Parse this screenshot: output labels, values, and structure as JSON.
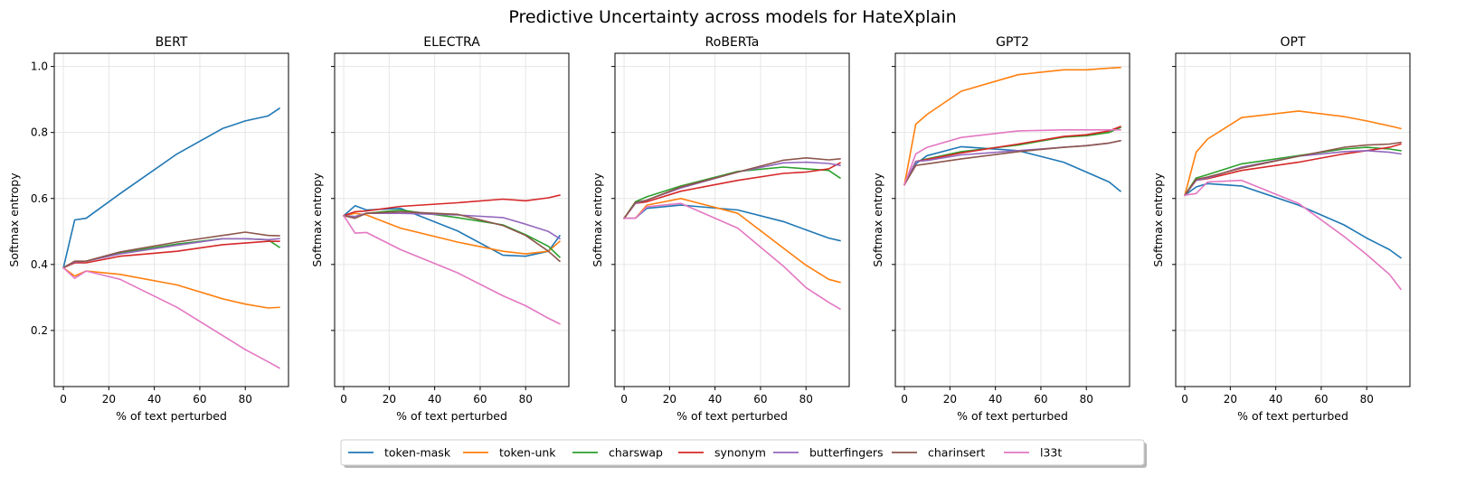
{
  "suptitle": "Predictive Uncertainty across models for HateXplain",
  "colors": {
    "token-mask": "#1f77b4",
    "token-unk": "#ff7f0e",
    "charswap": "#2ca02c",
    "synonym": "#d62728",
    "butterfingers": "#9467bd",
    "charinsert": "#8c564b",
    "l33t": "#e377c2",
    "grid": "#e6e6e6",
    "axes": "#000000"
  },
  "legend": {
    "placement": "bottom-center",
    "entries": [
      "token-mask",
      "token-unk",
      "charswap",
      "synonym",
      "butterfingers",
      "charinsert",
      "l33t"
    ]
  },
  "chart_data": [
    {
      "type": "line",
      "title": "BERT",
      "xlabel": "% of text perturbed",
      "ylabel": "Softmax entropy",
      "xlim": [
        -4,
        99
      ],
      "ylim": [
        0.03,
        1.04
      ],
      "xticks": [
        0,
        20,
        40,
        60,
        80
      ],
      "yticks": [
        0.2,
        0.4,
        0.6,
        0.8,
        1.0
      ],
      "ytick_labels": [
        "0.2",
        "0.4",
        "0.6",
        "0.8",
        "1.0"
      ],
      "grid": true,
      "x": [
        0,
        5,
        10,
        25,
        50,
        70,
        80,
        90,
        95
      ],
      "series": [
        {
          "name": "token-mask",
          "values": [
            0.39,
            0.535,
            0.54,
            0.615,
            0.735,
            0.812,
            0.835,
            0.85,
            0.873
          ]
        },
        {
          "name": "token-unk",
          "values": [
            0.39,
            0.365,
            0.38,
            0.37,
            0.338,
            0.296,
            0.28,
            0.268,
            0.27
          ]
        },
        {
          "name": "charswap",
          "values": [
            0.39,
            0.408,
            0.41,
            0.435,
            0.462,
            0.478,
            0.478,
            0.475,
            0.452
          ]
        },
        {
          "name": "synonym",
          "values": [
            0.39,
            0.405,
            0.405,
            0.425,
            0.44,
            0.46,
            0.465,
            0.47,
            0.47
          ]
        },
        {
          "name": "butterfingers",
          "values": [
            0.39,
            0.408,
            0.41,
            0.432,
            0.458,
            0.478,
            0.478,
            0.475,
            0.478
          ]
        },
        {
          "name": "charinsert",
          "values": [
            0.39,
            0.41,
            0.41,
            0.438,
            0.468,
            0.488,
            0.498,
            0.488,
            0.487
          ]
        },
        {
          "name": "l33t",
          "values": [
            0.39,
            0.358,
            0.38,
            0.355,
            0.27,
            0.185,
            0.142,
            0.105,
            0.086
          ]
        }
      ]
    },
    {
      "type": "line",
      "title": "ELECTRA",
      "xlabel": "% of text perturbed",
      "ylabel": "Softmax entropy",
      "xlim": [
        -4,
        99
      ],
      "ylim": [
        0.03,
        1.04
      ],
      "xticks": [
        0,
        20,
        40,
        60,
        80
      ],
      "yticks": [
        0.2,
        0.4,
        0.6,
        0.8,
        1.0
      ],
      "ytick_labels": [
        "",
        "",
        "",
        "",
        ""
      ],
      "grid": true,
      "x": [
        0,
        5,
        10,
        25,
        50,
        70,
        80,
        90,
        95
      ],
      "series": [
        {
          "name": "token-mask",
          "values": [
            0.548,
            0.578,
            0.565,
            0.57,
            0.502,
            0.428,
            0.425,
            0.44,
            0.487
          ]
        },
        {
          "name": "token-unk",
          "values": [
            0.548,
            0.555,
            0.55,
            0.51,
            0.468,
            0.44,
            0.432,
            0.44,
            0.47
          ]
        },
        {
          "name": "charswap",
          "values": [
            0.548,
            0.545,
            0.555,
            0.565,
            0.542,
            0.52,
            0.49,
            0.455,
            0.422
          ]
        },
        {
          "name": "synonym",
          "values": [
            0.548,
            0.56,
            0.562,
            0.576,
            0.587,
            0.598,
            0.593,
            0.602,
            0.61
          ]
        },
        {
          "name": "butterfingers",
          "values": [
            0.548,
            0.545,
            0.555,
            0.555,
            0.55,
            0.542,
            0.522,
            0.5,
            0.478
          ]
        },
        {
          "name": "charinsert",
          "values": [
            0.548,
            0.54,
            0.555,
            0.56,
            0.552,
            0.518,
            0.488,
            0.44,
            0.41
          ]
        },
        {
          "name": "l33t",
          "values": [
            0.548,
            0.495,
            0.497,
            0.445,
            0.375,
            0.305,
            0.275,
            0.237,
            0.22
          ]
        }
      ]
    },
    {
      "type": "line",
      "title": "RoBERTa",
      "xlabel": "% of text perturbed",
      "ylabel": "Softmax entropy",
      "xlim": [
        -4,
        99
      ],
      "ylim": [
        0.03,
        1.04
      ],
      "xticks": [
        0,
        20,
        40,
        60,
        80
      ],
      "yticks": [
        0.2,
        0.4,
        0.6,
        0.8,
        1.0
      ],
      "ytick_labels": [
        "",
        "",
        "",
        "",
        ""
      ],
      "grid": true,
      "x": [
        0,
        5,
        10,
        25,
        50,
        70,
        80,
        90,
        95
      ],
      "series": [
        {
          "name": "token-mask",
          "values": [
            0.54,
            0.54,
            0.57,
            0.58,
            0.565,
            0.53,
            0.505,
            0.48,
            0.472
          ]
        },
        {
          "name": "token-unk",
          "values": [
            0.54,
            0.54,
            0.58,
            0.6,
            0.555,
            0.45,
            0.398,
            0.355,
            0.346
          ]
        },
        {
          "name": "charswap",
          "values": [
            0.54,
            0.59,
            0.605,
            0.638,
            0.682,
            0.695,
            0.69,
            0.685,
            0.662
          ]
        },
        {
          "name": "synonym",
          "values": [
            0.54,
            0.585,
            0.59,
            0.622,
            0.655,
            0.676,
            0.68,
            0.69,
            0.708
          ]
        },
        {
          "name": "butterfingers",
          "values": [
            0.54,
            0.585,
            0.595,
            0.632,
            0.68,
            0.708,
            0.71,
            0.706,
            0.7
          ]
        },
        {
          "name": "charinsert",
          "values": [
            0.54,
            0.588,
            0.595,
            0.635,
            0.68,
            0.716,
            0.723,
            0.717,
            0.72
          ]
        },
        {
          "name": "l33t",
          "values": [
            0.54,
            0.54,
            0.575,
            0.585,
            0.51,
            0.395,
            0.33,
            0.285,
            0.265
          ]
        }
      ]
    },
    {
      "type": "line",
      "title": "GPT2",
      "xlabel": "% of text perturbed",
      "ylabel": "Softmax entropy",
      "xlim": [
        -4,
        99
      ],
      "ylim": [
        0.03,
        1.04
      ],
      "xticks": [
        0,
        20,
        40,
        60,
        80
      ],
      "yticks": [
        0.2,
        0.4,
        0.6,
        0.8,
        1.0
      ],
      "ytick_labels": [
        "",
        "",
        "",
        "",
        ""
      ],
      "grid": true,
      "x": [
        0,
        5,
        10,
        25,
        50,
        70,
        80,
        90,
        95
      ],
      "series": [
        {
          "name": "token-mask",
          "values": [
            0.642,
            0.705,
            0.73,
            0.757,
            0.745,
            0.71,
            0.68,
            0.65,
            0.622
          ]
        },
        {
          "name": "token-unk",
          "values": [
            0.642,
            0.825,
            0.855,
            0.925,
            0.975,
            0.99,
            0.99,
            0.995,
            0.997
          ]
        },
        {
          "name": "charswap",
          "values": [
            0.642,
            0.712,
            0.72,
            0.742,
            0.762,
            0.786,
            0.79,
            0.8,
            0.815
          ]
        },
        {
          "name": "synonym",
          "values": [
            0.642,
            0.712,
            0.718,
            0.738,
            0.765,
            0.788,
            0.793,
            0.805,
            0.818
          ]
        },
        {
          "name": "butterfingers",
          "values": [
            0.642,
            0.712,
            0.715,
            0.732,
            0.745,
            0.755,
            0.76,
            0.768,
            0.775
          ]
        },
        {
          "name": "charinsert",
          "values": [
            0.642,
            0.7,
            0.705,
            0.72,
            0.742,
            0.755,
            0.76,
            0.768,
            0.775
          ]
        },
        {
          "name": "l33t",
          "values": [
            0.642,
            0.735,
            0.755,
            0.785,
            0.805,
            0.808,
            0.808,
            0.808,
            0.808
          ]
        }
      ]
    },
    {
      "type": "line",
      "title": "OPT",
      "xlabel": "% of text perturbed",
      "ylabel": "Softmax entropy",
      "xlim": [
        -4,
        99
      ],
      "ylim": [
        0.03,
        1.04
      ],
      "xticks": [
        0,
        20,
        40,
        60,
        80
      ],
      "yticks": [
        0.2,
        0.4,
        0.6,
        0.8,
        1.0
      ],
      "ytick_labels": [
        "",
        "",
        "",
        "",
        ""
      ],
      "grid": true,
      "x": [
        0,
        5,
        10,
        25,
        50,
        70,
        80,
        90,
        95
      ],
      "series": [
        {
          "name": "token-mask",
          "values": [
            0.61,
            0.635,
            0.645,
            0.638,
            0.58,
            0.52,
            0.48,
            0.445,
            0.42
          ]
        },
        {
          "name": "token-unk",
          "values": [
            0.61,
            0.74,
            0.78,
            0.845,
            0.865,
            0.848,
            0.835,
            0.82,
            0.812
          ]
        },
        {
          "name": "charswap",
          "values": [
            0.61,
            0.662,
            0.672,
            0.705,
            0.73,
            0.75,
            0.755,
            0.75,
            0.745
          ]
        },
        {
          "name": "synonym",
          "values": [
            0.61,
            0.655,
            0.66,
            0.685,
            0.71,
            0.735,
            0.745,
            0.755,
            0.765
          ]
        },
        {
          "name": "butterfingers",
          "values": [
            0.61,
            0.655,
            0.662,
            0.695,
            0.728,
            0.742,
            0.745,
            0.74,
            0.735
          ]
        },
        {
          "name": "charinsert",
          "values": [
            0.61,
            0.658,
            0.665,
            0.692,
            0.728,
            0.755,
            0.762,
            0.765,
            0.77
          ]
        },
        {
          "name": "l33t",
          "values": [
            0.61,
            0.615,
            0.65,
            0.655,
            0.585,
            0.485,
            0.43,
            0.37,
            0.325
          ]
        }
      ]
    }
  ]
}
